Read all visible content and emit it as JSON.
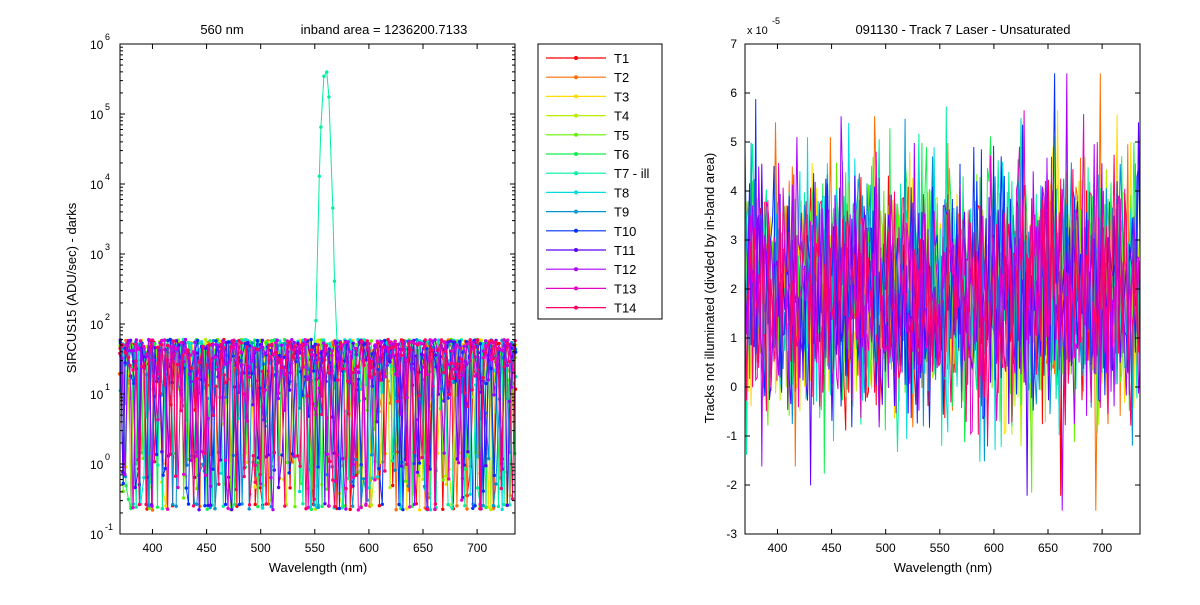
{
  "chart_data": [
    {
      "type": "line",
      "title_left": "560 nm",
      "title_right": "inband area = 1236200.7133",
      "xlabel": "Wavelength (nm)",
      "ylabel": "SIRCUS15  (ADU/sec) - darks",
      "xlim": [
        370,
        735
      ],
      "ylim": [
        0.1,
        1000000
      ],
      "yscale": "log",
      "markers": true,
      "x_ticks": [
        "400",
        "450",
        "500",
        "550",
        "600",
        "650",
        "700"
      ],
      "y_tick_bases": [
        "10",
        "10",
        "10",
        "10",
        "10",
        "10",
        "10",
        "10"
      ],
      "y_tick_exponents": [
        "-1",
        "0",
        "1",
        "2",
        "3",
        "4",
        "5",
        "6"
      ],
      "noise_range": [
        0.5,
        60
      ],
      "peak": {
        "series": "T7 - ill",
        "x": 560,
        "y": 450000
      },
      "legend_position": "outside-right",
      "series": [
        {
          "name": "T1",
          "color": "#ff0000"
        },
        {
          "name": "T2",
          "color": "#ff6e00"
        },
        {
          "name": "T3",
          "color": "#ffdc00"
        },
        {
          "name": "T4",
          "color": "#b4f000"
        },
        {
          "name": "T5",
          "color": "#64f000"
        },
        {
          "name": "T6",
          "color": "#14f050"
        },
        {
          "name": "T7 - ill",
          "color": "#00f0a0"
        },
        {
          "name": "T8",
          "color": "#00dcdc"
        },
        {
          "name": "T9",
          "color": "#0096d2"
        },
        {
          "name": "T10",
          "color": "#0032ff"
        },
        {
          "name": "T11",
          "color": "#5a00ff"
        },
        {
          "name": "T12",
          "color": "#aa00ff"
        },
        {
          "name": "T13",
          "color": "#e600c8"
        },
        {
          "name": "T14",
          "color": "#ff0064"
        }
      ]
    },
    {
      "type": "line",
      "title": "091130 - Track 7 Laser - Unsaturated",
      "xlabel": "Wavelength (nm)",
      "ylabel": "Tracks not illuminated (divded by in-band area)",
      "multiplier_base": "x 10",
      "multiplier_exponent": "-5",
      "xlim": [
        370,
        735
      ],
      "ylim": [
        -3,
        7
      ],
      "x_ticks": [
        "400",
        "450",
        "500",
        "550",
        "600",
        "650",
        "700"
      ],
      "y_ticks": [
        "-3",
        "-2",
        "-1",
        "0",
        "1",
        "2",
        "3",
        "4",
        "5",
        "6",
        "7"
      ],
      "noise_range": [
        -2.6,
        6.4
      ],
      "series_mean": 2
    }
  ]
}
